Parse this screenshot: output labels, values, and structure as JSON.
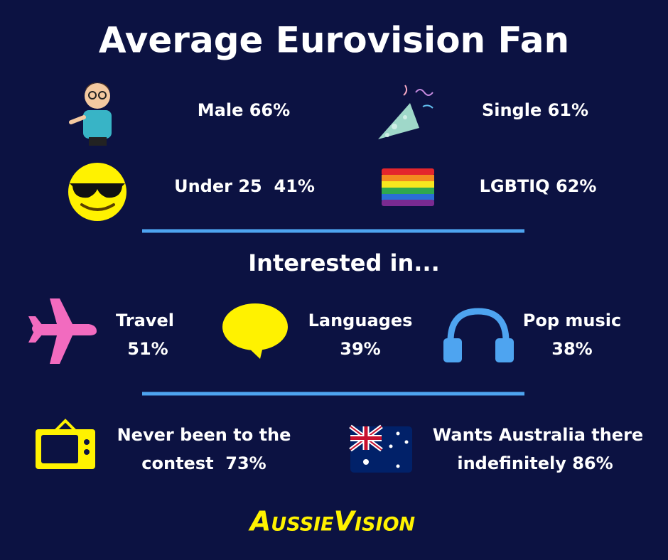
{
  "title": "Average Eurovision Fan",
  "profile": [
    "Male 66%",
    "Single 61%",
    "Under 25  41%",
    "LGBTIQ 62%"
  ],
  "interests": {
    "heading": "Interested in...",
    "items": [
      {
        "name": "Travel",
        "value": "51%"
      },
      {
        "name": "Languages",
        "value": "39%"
      },
      {
        "name": "Pop music",
        "value": "38%"
      }
    ]
  },
  "facts": [
    {
      "lines": [
        "Never been to the",
        "contest  73%"
      ]
    },
    {
      "lines": [
        "Wants Australia there",
        "indefinitely 86%"
      ]
    }
  ],
  "logo": "AussieVision"
}
